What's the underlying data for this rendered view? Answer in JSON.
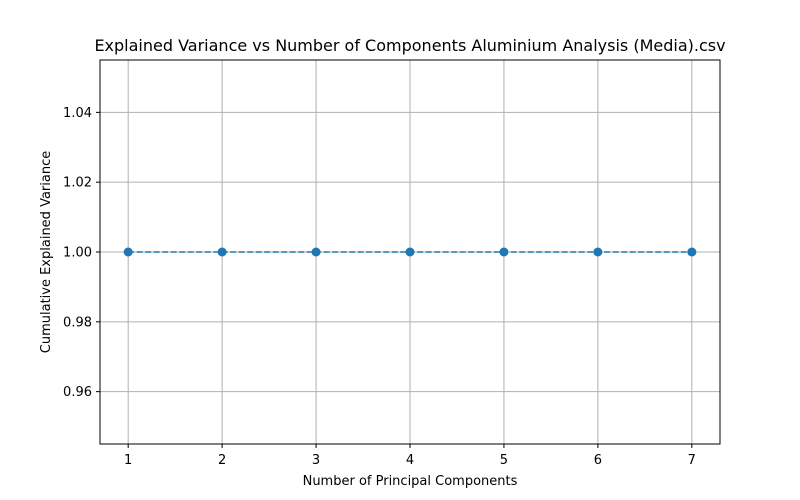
{
  "chart_data": {
    "type": "line",
    "title": "Explained Variance vs Number of Components Aluminium Analysis (Media).csv",
    "xlabel": "Number of Principal Components",
    "ylabel": "Cumulative Explained Variance",
    "x": [
      1,
      2,
      3,
      4,
      5,
      6,
      7
    ],
    "series": [
      {
        "values": [
          1.0,
          1.0,
          1.0,
          1.0,
          1.0,
          1.0,
          1.0
        ]
      }
    ],
    "xlim": [
      0.7,
      7.3
    ],
    "ylim": [
      0.945,
      1.055
    ],
    "xticks": [
      1,
      2,
      3,
      4,
      5,
      6,
      7
    ],
    "xtick_labels": [
      "1",
      "2",
      "3",
      "4",
      "5",
      "6",
      "7"
    ],
    "yticks": [
      0.96,
      0.98,
      1.0,
      1.02,
      1.04
    ],
    "ytick_labels": [
      "0.96",
      "0.98",
      "1.00",
      "1.02",
      "1.04"
    ],
    "grid": true,
    "line_style": "dashed",
    "marker": "circle",
    "colors": {
      "series": "#1f77b4",
      "grid": "#b0b0b0",
      "axes": "#000000"
    }
  }
}
